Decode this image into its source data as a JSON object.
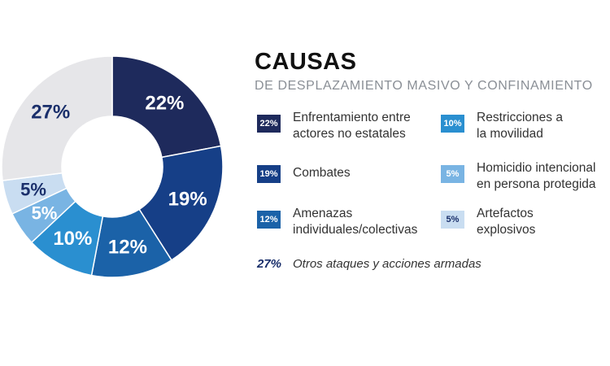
{
  "heading": {
    "title": "CAUSAS",
    "subtitle": "DE DESPLAZAMIENTO MASIVO Y CONFINAMIENTO"
  },
  "chart_data": {
    "type": "pie",
    "title": "CAUSAS",
    "subtitle": "DE DESPLAZAMIENTO MASIVO Y CONFINAMIENTO",
    "series": [
      {
        "name": "Enfrentamiento entre actores no estatales",
        "value": 22,
        "label": "22%",
        "color": "#1e2a5c",
        "text_color": "#ffffff"
      },
      {
        "name": "Combates",
        "value": 19,
        "label": "19%",
        "color": "#163f87",
        "text_color": "#ffffff"
      },
      {
        "name": "Amenazas individuales/colectivas",
        "value": 12,
        "label": "12%",
        "color": "#1b62a8",
        "text_color": "#ffffff"
      },
      {
        "name": "Restricciones a la movilidad",
        "value": 10,
        "label": "10%",
        "color": "#2a8fd0",
        "text_color": "#ffffff"
      },
      {
        "name": "Homicidio intencional en persona protegida",
        "value": 5,
        "label": "5%",
        "color": "#79b4e3",
        "text_color": "#ffffff"
      },
      {
        "name": "Artefactos explosivos",
        "value": 5,
        "label": "5%",
        "color": "#c9ddf1",
        "text_color": "#1a2f6b"
      },
      {
        "name": "Otros ataques y acciones armadas",
        "value": 27,
        "label": "27%",
        "color": "#e6e6e9",
        "text_color": "#1a2f6b"
      }
    ]
  },
  "legend": {
    "items": [
      {
        "badge": "22%",
        "label_line1": "Enfrentamiento entre",
        "label_line2": "actores no estatales",
        "color": "#1e2a5c"
      },
      {
        "badge": "10%",
        "label_line1": "Restricciones a",
        "label_line2": "la movilidad",
        "color": "#2a8fd0"
      },
      {
        "badge": "19%",
        "label_line1": "Combates",
        "label_line2": "",
        "color": "#163f87"
      },
      {
        "badge": "5%",
        "label_line1": "Homicidio intencional",
        "label_line2": "en persona protegida",
        "color": "#79b4e3"
      },
      {
        "badge": "12%",
        "label_line1": "Amenazas",
        "label_line2": "individuales/colectivas",
        "color": "#1b62a8"
      },
      {
        "badge": "5%",
        "label_line1": "Artefactos",
        "label_line2": "explosivos",
        "color": "#c9ddf1"
      }
    ],
    "other": {
      "pct": "27%",
      "label": "Otros ataques y acciones armadas"
    }
  }
}
